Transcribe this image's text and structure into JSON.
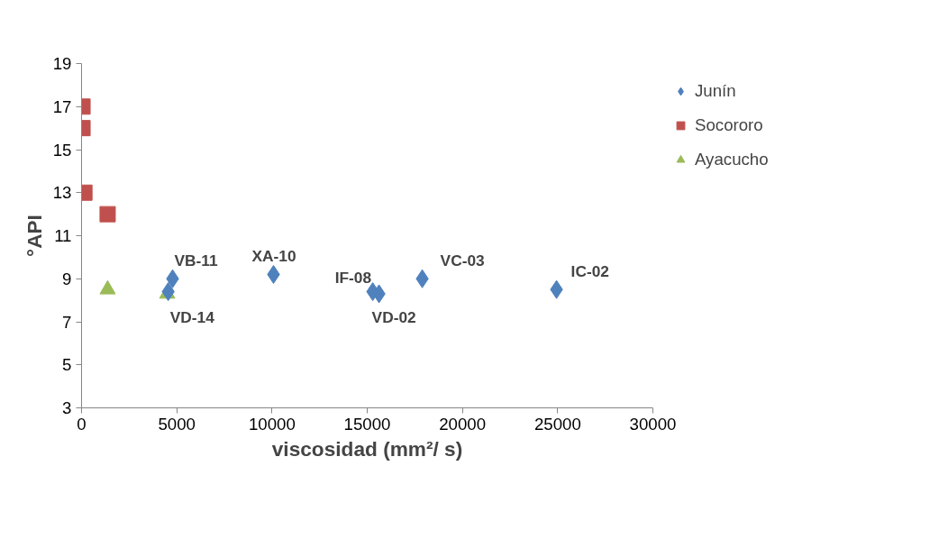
{
  "chart_data": {
    "type": "scatter",
    "xlabel": "viscosidad (mm²/ s)",
    "ylabel": "°API",
    "xlim": [
      0,
      30000
    ],
    "xticks": [
      0,
      5000,
      10000,
      15000,
      20000,
      25000,
      30000
    ],
    "ylim": [
      3,
      19
    ],
    "yticks": [
      3,
      5,
      7,
      9,
      11,
      13,
      15,
      17,
      19
    ],
    "grid": false,
    "legend": "right",
    "series": [
      {
        "name": "Junín",
        "color": "#4f81bd",
        "marker": "diamond",
        "x": [
          4550,
          4780,
          10080,
          15290,
          15620,
          17890,
          24940
        ],
        "values": [
          8.4,
          9.0,
          9.2,
          8.4,
          8.3,
          9.0,
          8.5
        ]
      },
      {
        "name": "Socororo",
        "color": "#c0504d",
        "marker": "square",
        "x": [
          50,
          50,
          150,
          1370
        ],
        "values": [
          17.0,
          16.0,
          13.0,
          12.0
        ]
      },
      {
        "name": "Ayacucho",
        "color": "#9bbb59",
        "marker": "triangle",
        "x": [
          1370,
          4500
        ],
        "values": [
          8.5,
          8.3
        ]
      }
    ],
    "annotations": [
      {
        "text": "VB-11",
        "x": 4780,
        "y": 9.0
      },
      {
        "text": "VD-14",
        "x": 4550,
        "y": 8.4
      },
      {
        "text": "XA-10",
        "x": 10080,
        "y": 9.2
      },
      {
        "text": "IF-08",
        "x": 15290,
        "y": 8.4
      },
      {
        "text": "VD-02",
        "x": 15620,
        "y": 8.3
      },
      {
        "text": "VC-03",
        "x": 17890,
        "y": 9.0
      },
      {
        "text": "IC-02",
        "x": 24940,
        "y": 8.5
      }
    ]
  }
}
